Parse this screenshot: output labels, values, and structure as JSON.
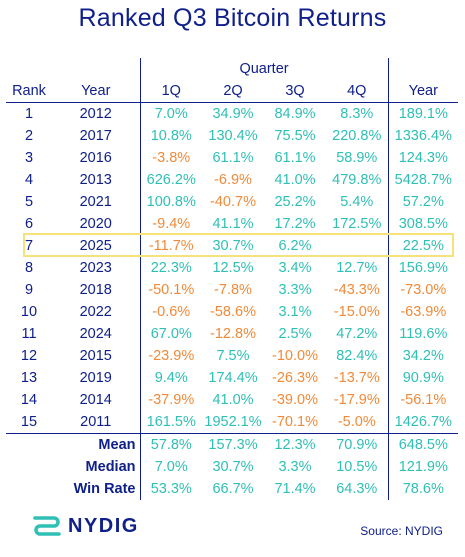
{
  "title": "Ranked Q3 Bitcoin Returns",
  "table": {
    "group_header": "Quarter",
    "columns": [
      "Rank",
      "Year",
      "1Q",
      "2Q",
      "3Q",
      "4Q",
      "Year"
    ],
    "rows": [
      {
        "rank": "1",
        "year": "2012",
        "q": [
          "7.0%",
          "34.9%",
          "84.9%",
          "8.3%"
        ],
        "total": "189.1%"
      },
      {
        "rank": "2",
        "year": "2017",
        "q": [
          "10.8%",
          "130.4%",
          "75.5%",
          "220.8%"
        ],
        "total": "1336.4%"
      },
      {
        "rank": "3",
        "year": "2016",
        "q": [
          "-3.8%",
          "61.1%",
          "61.1%",
          "58.9%"
        ],
        "total": "124.3%"
      },
      {
        "rank": "4",
        "year": "2013",
        "q": [
          "626.2%",
          "-6.9%",
          "41.0%",
          "479.8%"
        ],
        "total": "5428.7%"
      },
      {
        "rank": "5",
        "year": "2021",
        "q": [
          "100.8%",
          "-40.7%",
          "25.2%",
          "5.4%"
        ],
        "total": "57.2%"
      },
      {
        "rank": "6",
        "year": "2020",
        "q": [
          "-9.4%",
          "41.1%",
          "17.2%",
          "172.5%"
        ],
        "total": "308.5%"
      },
      {
        "rank": "7",
        "year": "2025",
        "q": [
          "-11.7%",
          "30.7%",
          "6.2%",
          ""
        ],
        "total": "22.5%"
      },
      {
        "rank": "8",
        "year": "2023",
        "q": [
          "22.3%",
          "12.5%",
          "3.4%",
          "12.7%"
        ],
        "total": "156.9%"
      },
      {
        "rank": "9",
        "year": "2018",
        "q": [
          "-50.1%",
          "-7.8%",
          "3.3%",
          "-43.3%"
        ],
        "total": "-73.0%"
      },
      {
        "rank": "10",
        "year": "2022",
        "q": [
          "-0.6%",
          "-58.6%",
          "3.1%",
          "-15.0%"
        ],
        "total": "-63.9%"
      },
      {
        "rank": "11",
        "year": "2024",
        "q": [
          "67.0%",
          "-12.8%",
          "2.5%",
          "47.2%"
        ],
        "total": "119.6%"
      },
      {
        "rank": "12",
        "year": "2015",
        "q": [
          "-23.9%",
          "7.5%",
          "-10.0%",
          "82.4%"
        ],
        "total": "34.2%"
      },
      {
        "rank": "13",
        "year": "2019",
        "q": [
          "9.4%",
          "174.4%",
          "-26.3%",
          "-13.7%"
        ],
        "total": "90.9%"
      },
      {
        "rank": "14",
        "year": "2014",
        "q": [
          "-37.9%",
          "41.0%",
          "-39.0%",
          "-17.9%"
        ],
        "total": "-56.1%"
      },
      {
        "rank": "15",
        "year": "2011",
        "q": [
          "161.5%",
          "1952.1%",
          "-70.1%",
          "-5.0%"
        ],
        "total": "1426.7%"
      }
    ],
    "stats": [
      {
        "label": "Mean",
        "q": [
          "57.8%",
          "157.3%",
          "12.3%",
          "70.9%"
        ],
        "total": "648.5%"
      },
      {
        "label": "Median",
        "q": [
          "7.0%",
          "30.7%",
          "3.3%",
          "10.5%"
        ],
        "total": "121.9%"
      },
      {
        "label": "Win Rate",
        "q": [
          "53.3%",
          "66.7%",
          "71.4%",
          "64.3%"
        ],
        "total": "78.6%"
      }
    ],
    "highlighted_rank": "7"
  },
  "colors": {
    "positive": "#2fbfb5",
    "negative": "#f08a3a",
    "text": "#10208a",
    "highlight": "#f5e27a"
  },
  "footer": {
    "logo_text": "NYDIG",
    "logo_icon": "nydig-logo-icon",
    "source": "Source: NYDIG"
  },
  "chart_data": {
    "type": "table",
    "title": "Ranked Q3 Bitcoin Returns",
    "columns": [
      "Rank",
      "Year",
      "1Q",
      "2Q",
      "3Q",
      "4Q",
      "Year"
    ],
    "rows": [
      [
        1,
        2012,
        7.0,
        34.9,
        84.9,
        8.3,
        189.1
      ],
      [
        2,
        2017,
        10.8,
        130.4,
        75.5,
        220.8,
        1336.4
      ],
      [
        3,
        2016,
        -3.8,
        61.1,
        61.1,
        58.9,
        124.3
      ],
      [
        4,
        2013,
        626.2,
        -6.9,
        41.0,
        479.8,
        5428.7
      ],
      [
        5,
        2021,
        100.8,
        -40.7,
        25.2,
        5.4,
        57.2
      ],
      [
        6,
        2020,
        -9.4,
        41.1,
        17.2,
        172.5,
        308.5
      ],
      [
        7,
        2025,
        -11.7,
        30.7,
        6.2,
        null,
        22.5
      ],
      [
        8,
        2023,
        22.3,
        12.5,
        3.4,
        12.7,
        156.9
      ],
      [
        9,
        2018,
        -50.1,
        -7.8,
        3.3,
        -43.3,
        -73.0
      ],
      [
        10,
        2022,
        -0.6,
        -58.6,
        3.1,
        -15.0,
        -63.9
      ],
      [
        11,
        2024,
        67.0,
        -12.8,
        2.5,
        47.2,
        119.6
      ],
      [
        12,
        2015,
        -23.9,
        7.5,
        -10.0,
        82.4,
        34.2
      ],
      [
        13,
        2019,
        9.4,
        174.4,
        -26.3,
        -13.7,
        90.9
      ],
      [
        14,
        2014,
        -37.9,
        41.0,
        -39.0,
        -17.9,
        -56.1
      ],
      [
        15,
        2011,
        161.5,
        1952.1,
        -70.1,
        -5.0,
        1426.7
      ]
    ],
    "summary": {
      "Mean": [
        57.8,
        157.3,
        12.3,
        70.9,
        648.5
      ],
      "Median": [
        7.0,
        30.7,
        3.3,
        10.5,
        121.9
      ],
      "Win Rate": [
        53.3,
        66.7,
        71.4,
        64.3,
        78.6
      ]
    },
    "units": "%"
  }
}
